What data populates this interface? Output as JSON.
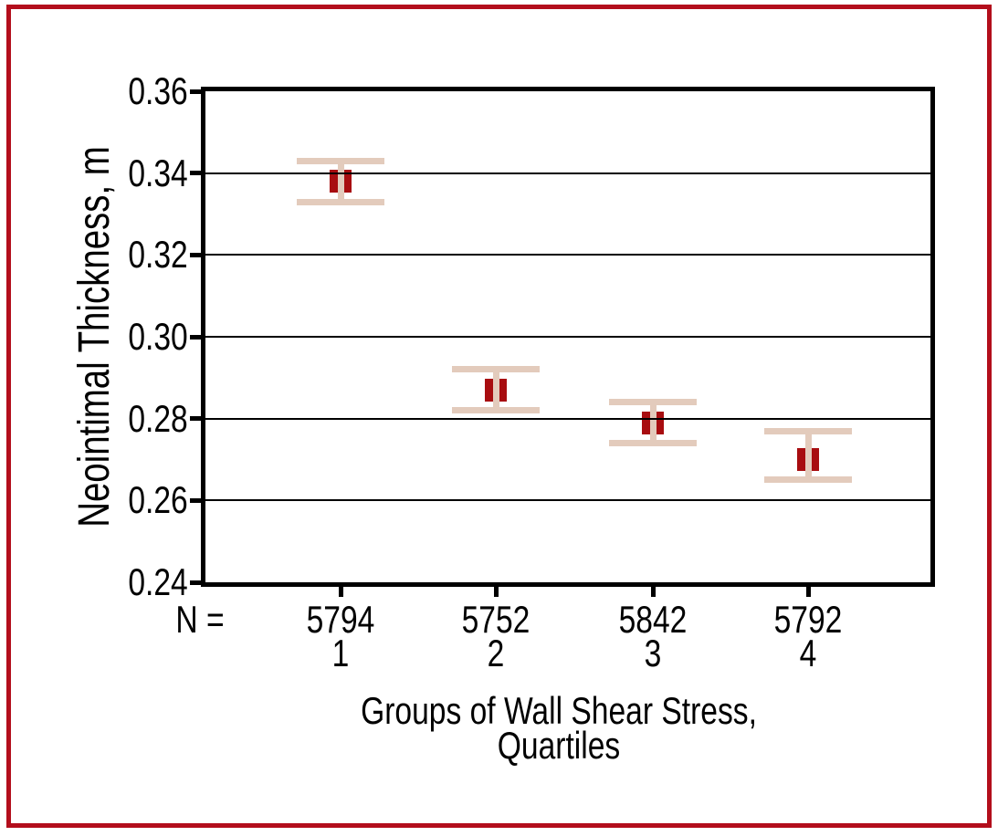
{
  "chart": {
    "y_axis_title": "Neointimal Thickness, m",
    "x_axis_title_line1": "Groups of Wall Shear Stress,",
    "x_axis_title_line2": "Quartiles",
    "n_prefix": "N ="
  },
  "chart_data": {
    "type": "scatter",
    "subtype": "mean-with-error-bars",
    "title": "",
    "xlabel": "Groups of Wall Shear Stress, Quartiles",
    "ylabel": "Neointimal Thickness, m",
    "categories": [
      "1",
      "2",
      "3",
      "4"
    ],
    "n_label_prefix": "N =",
    "n_per_group": [
      "5794",
      "5752",
      "5842",
      "5792"
    ],
    "series": [
      {
        "name": "mean",
        "values": [
          0.338,
          0.287,
          0.279,
          0.27
        ]
      },
      {
        "name": "error_low",
        "values": [
          0.333,
          0.282,
          0.274,
          0.265
        ]
      },
      {
        "name": "error_high",
        "values": [
          0.343,
          0.292,
          0.284,
          0.277
        ]
      }
    ],
    "ylim": [
      0.24,
      0.36
    ],
    "yticks": [
      0.36,
      0.34,
      0.32,
      0.3,
      0.28,
      0.26,
      0.24
    ],
    "ytick_labels": [
      "0.36",
      "0.34",
      "0.32",
      "0.30",
      "0.28",
      "0.26",
      "0.24"
    ],
    "grid": "horizontal",
    "legend": "none",
    "colors": {
      "marker": "#a80d10",
      "error_bar": "#e3cbbc",
      "frame_border": "#b30e1c",
      "axis": "#000000",
      "background": "#ffffff"
    }
  }
}
